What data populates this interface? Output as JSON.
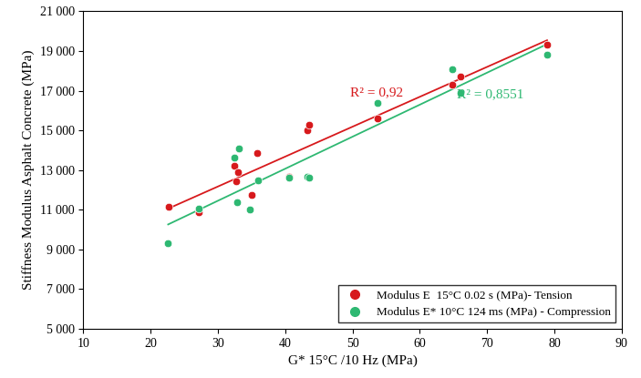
{
  "chart_data": {
    "type": "scatter",
    "x_label": "G* 15°C /10 Hz (MPa)",
    "y_label": "Stiffness Modulus Asphalt Concrete (MPa)",
    "xlim": [
      10,
      90
    ],
    "xticks": [
      10,
      20,
      30,
      40,
      50,
      60,
      70,
      80,
      90
    ],
    "ylim": [
      5000,
      21000
    ],
    "yticks": [
      {
        "value": 5000,
        "label": "5 000"
      },
      {
        "value": 7000,
        "label": "7 000"
      },
      {
        "value": 9000,
        "label": "9 000"
      },
      {
        "value": 11000,
        "label": "11 000"
      },
      {
        "value": 13000,
        "label": "13 000"
      },
      {
        "value": 15000,
        "label": "15 000"
      },
      {
        "value": 17000,
        "label": "17 000"
      },
      {
        "value": 19000,
        "label": "19 000"
      },
      {
        "value": 21000,
        "label": "21 000"
      }
    ],
    "grid": false,
    "legend": "lower right",
    "annotations": [
      "R² = 0,92",
      "R² = 0,8551"
    ],
    "series": [
      {
        "name": "Modulus E  15°C 0.02 s (MPa)- Tension",
        "color": "#d7191c",
        "marker": "circle",
        "x": [
          22.7,
          27.2,
          32.5,
          32.7,
          33.0,
          35.0,
          35.8,
          40.6,
          43.3,
          43.6,
          53.7,
          64.8,
          66.1,
          78.9
        ],
        "values": [
          11150,
          10900,
          13200,
          12450,
          12900,
          11750,
          13850,
          12650,
          15000,
          15300,
          15600,
          17300,
          17700,
          19300
        ]
      },
      {
        "name": "Modulus E* 10°C 124 ms (MPa) - Compression",
        "color": "#2eb872",
        "marker": "circle",
        "x": [
          22.6,
          27.2,
          32.5,
          32.9,
          33.1,
          34.8,
          35.9,
          40.6,
          43.3,
          43.6,
          53.7,
          64.8,
          66.1,
          78.9
        ],
        "values": [
          9300,
          11050,
          13650,
          11400,
          14100,
          11000,
          12500,
          12600,
          12650,
          12600,
          16400,
          18100,
          16900,
          18800
        ]
      }
    ]
  }
}
